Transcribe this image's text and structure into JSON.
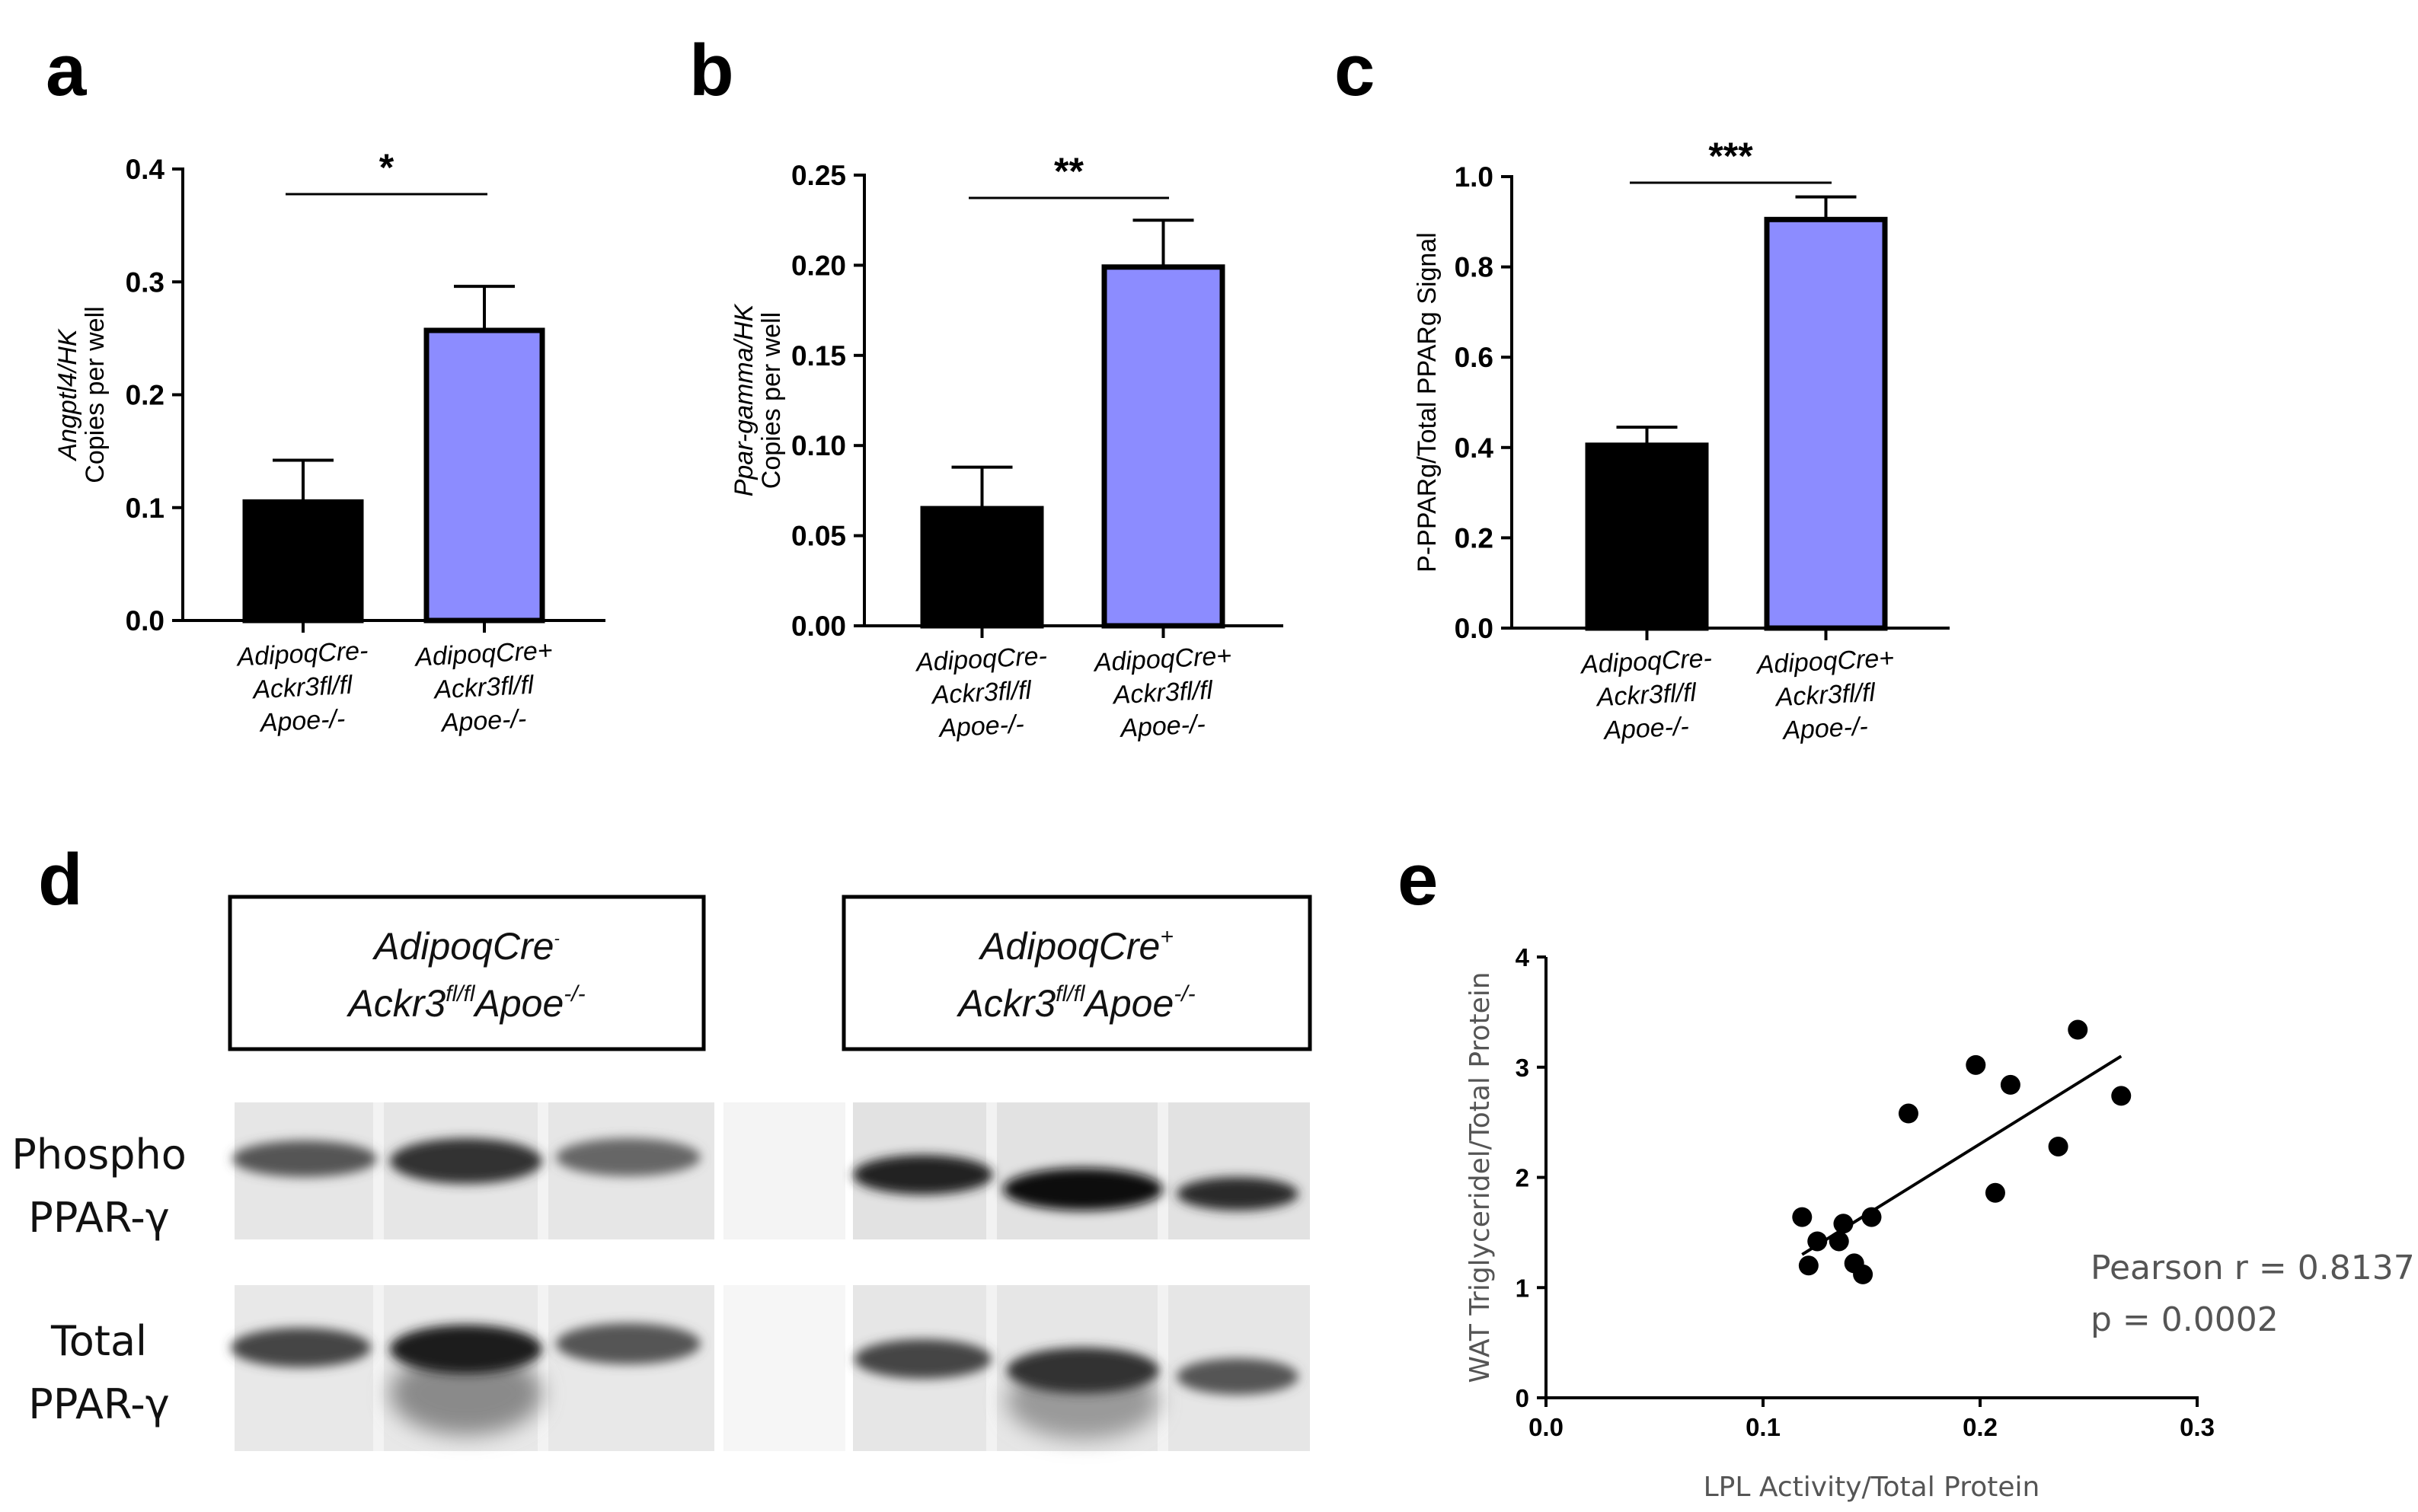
{
  "panel_letters": {
    "a": "a",
    "b": "b",
    "c": "c",
    "d": "d",
    "e": "e"
  },
  "chart_data": [
    {
      "id": "a",
      "type": "bar",
      "categories": [
        [
          "AdipoqCre-",
          "Ackr3fl/fl",
          "Apoe-/-"
        ],
        [
          "AdipoqCre+",
          "Ackr3fl/fl",
          "Apoe-/-"
        ]
      ],
      "values": [
        0.105,
        0.257
      ],
      "errors": [
        0.037,
        0.039
      ],
      "colors": [
        "#000000",
        "#8c8cff"
      ],
      "ylabel_line1": "Angptl4/HK",
      "ylabel_line2": "Copies per well",
      "ylim": [
        0,
        0.4
      ],
      "yticks": [
        "0.0",
        "0.1",
        "0.2",
        "0.3",
        "0.4"
      ],
      "significance": "*"
    },
    {
      "id": "b",
      "type": "bar",
      "categories": [
        [
          "AdipoqCre-",
          "Ackr3fl/fl",
          "Apoe-/-"
        ],
        [
          "AdipoqCre+",
          "Ackr3fl/fl",
          "Apoe-/-"
        ]
      ],
      "values": [
        0.065,
        0.199
      ],
      "errors": [
        0.023,
        0.026
      ],
      "colors": [
        "#000000",
        "#8c8cff"
      ],
      "ylabel_line1": "Ppar-gamma/HK",
      "ylabel_line2": "Copies per well",
      "ylim": [
        0,
        0.25
      ],
      "yticks": [
        "0.00",
        "0.05",
        "0.10",
        "0.15",
        "0.20",
        "0.25"
      ],
      "significance": "**"
    },
    {
      "id": "c",
      "type": "bar",
      "categories": [
        [
          "AdipoqCre-",
          "Ackr3fl/fl",
          "Apoe-/-"
        ],
        [
          "AdipoqCre+",
          "Ackr3fl/fl",
          "Apoe-/-"
        ]
      ],
      "values": [
        0.405,
        0.905
      ],
      "errors": [
        0.04,
        0.05
      ],
      "colors": [
        "#000000",
        "#8c8cff"
      ],
      "ylabel": "P-PPARg/Total PPARg Signal",
      "ylim": [
        0,
        1.0
      ],
      "yticks": [
        "0.0",
        "0.2",
        "0.4",
        "0.6",
        "0.8",
        "1.0"
      ],
      "significance": "***"
    },
    {
      "id": "e",
      "type": "scatter",
      "xlabel": "LPL Activity/Total Protein",
      "ylabel": "WAT Triglyceridel/Total Protein",
      "xlim": [
        0,
        0.3
      ],
      "ylim": [
        0,
        4
      ],
      "xticks": [
        "0.0",
        "0.1",
        "0.2",
        "0.3"
      ],
      "yticks": [
        "0",
        "1",
        "2",
        "3",
        "4"
      ],
      "points": [
        [
          0.118,
          1.64
        ],
        [
          0.121,
          1.2
        ],
        [
          0.125,
          1.42
        ],
        [
          0.135,
          1.42
        ],
        [
          0.137,
          1.58
        ],
        [
          0.142,
          1.22
        ],
        [
          0.146,
          1.12
        ],
        [
          0.15,
          1.64
        ],
        [
          0.167,
          2.58
        ],
        [
          0.198,
          3.02
        ],
        [
          0.207,
          1.86
        ],
        [
          0.214,
          2.84
        ],
        [
          0.236,
          2.28
        ],
        [
          0.245,
          3.34
        ],
        [
          0.265,
          2.74
        ]
      ],
      "fit_line": {
        "x": [
          0.118,
          0.265
        ],
        "y": [
          1.3,
          3.1
        ]
      },
      "stats": [
        "Pearson r = 0.8137",
        "p = 0.0002"
      ]
    }
  ],
  "blot": {
    "groups": [
      {
        "line1": "AdipoqCre",
        "line1_sup": "-",
        "line2_main": "Ackr3",
        "line2_sup": "fl/fl",
        "line2_b": "Apoe",
        "line2_sup2": "-/-"
      },
      {
        "line1": "AdipoqCre",
        "line1_sup": "+",
        "line2_main": "Ackr3",
        "line2_sup": "fl/fl",
        "line2_b": "Apoe",
        "line2_sup2": "-/-"
      }
    ],
    "rows": [
      {
        "label1": "Phospho",
        "label2": "PPAR-γ"
      },
      {
        "label1": "Total",
        "label2": "PPAR-γ"
      }
    ]
  }
}
